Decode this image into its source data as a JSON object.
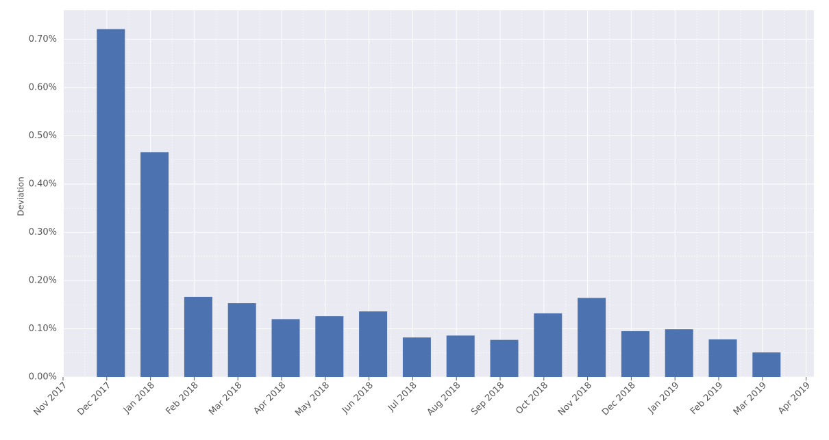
{
  "chart_data": {
    "type": "bar",
    "y_label": "Deviation",
    "x": [
      "Dec 2017",
      "Jan 2018",
      "Feb 2018",
      "Mar 2018",
      "Apr 2018",
      "May 2018",
      "Jun 2018",
      "Jul 2018",
      "Aug 2018",
      "Sep 2018",
      "Oct 2018",
      "Nov 2018",
      "Dec 2018",
      "Jan 2019",
      "Feb 2019",
      "Mar 2019"
    ],
    "values": [
      0.721,
      0.466,
      0.166,
      0.153,
      0.12,
      0.126,
      0.136,
      0.082,
      0.086,
      0.077,
      0.132,
      0.164,
      0.095,
      0.099,
      0.078,
      0.051
    ],
    "color": "#4c72b0",
    "xticks": [
      "Nov 2017",
      "Dec 2017",
      "Jan 2018",
      "Feb 2018",
      "Mar 2018",
      "Apr 2018",
      "May 2018",
      "Jun 2018",
      "Jul 2018",
      "Aug 2018",
      "Sep 2018",
      "Oct 2018",
      "Nov 2018",
      "Dec 2018",
      "Jan 2019",
      "Feb 2019",
      "Mar 2019",
      "Apr 2019"
    ],
    "ylim": [
      0,
      0.76
    ],
    "yticks": [
      {
        "value": 0,
        "label": "0.00%"
      },
      {
        "value": 0.1,
        "label": "0.10%"
      },
      {
        "value": 0.2,
        "label": "0.20%"
      },
      {
        "value": 0.3,
        "label": "0.30%"
      },
      {
        "value": 0.4,
        "label": "0.40%"
      },
      {
        "value": 0.5,
        "label": "0.50%"
      },
      {
        "value": 0.6,
        "label": "0.60%"
      },
      {
        "value": 0.7,
        "label": "0.70%"
      }
    ],
    "grid": true
  }
}
